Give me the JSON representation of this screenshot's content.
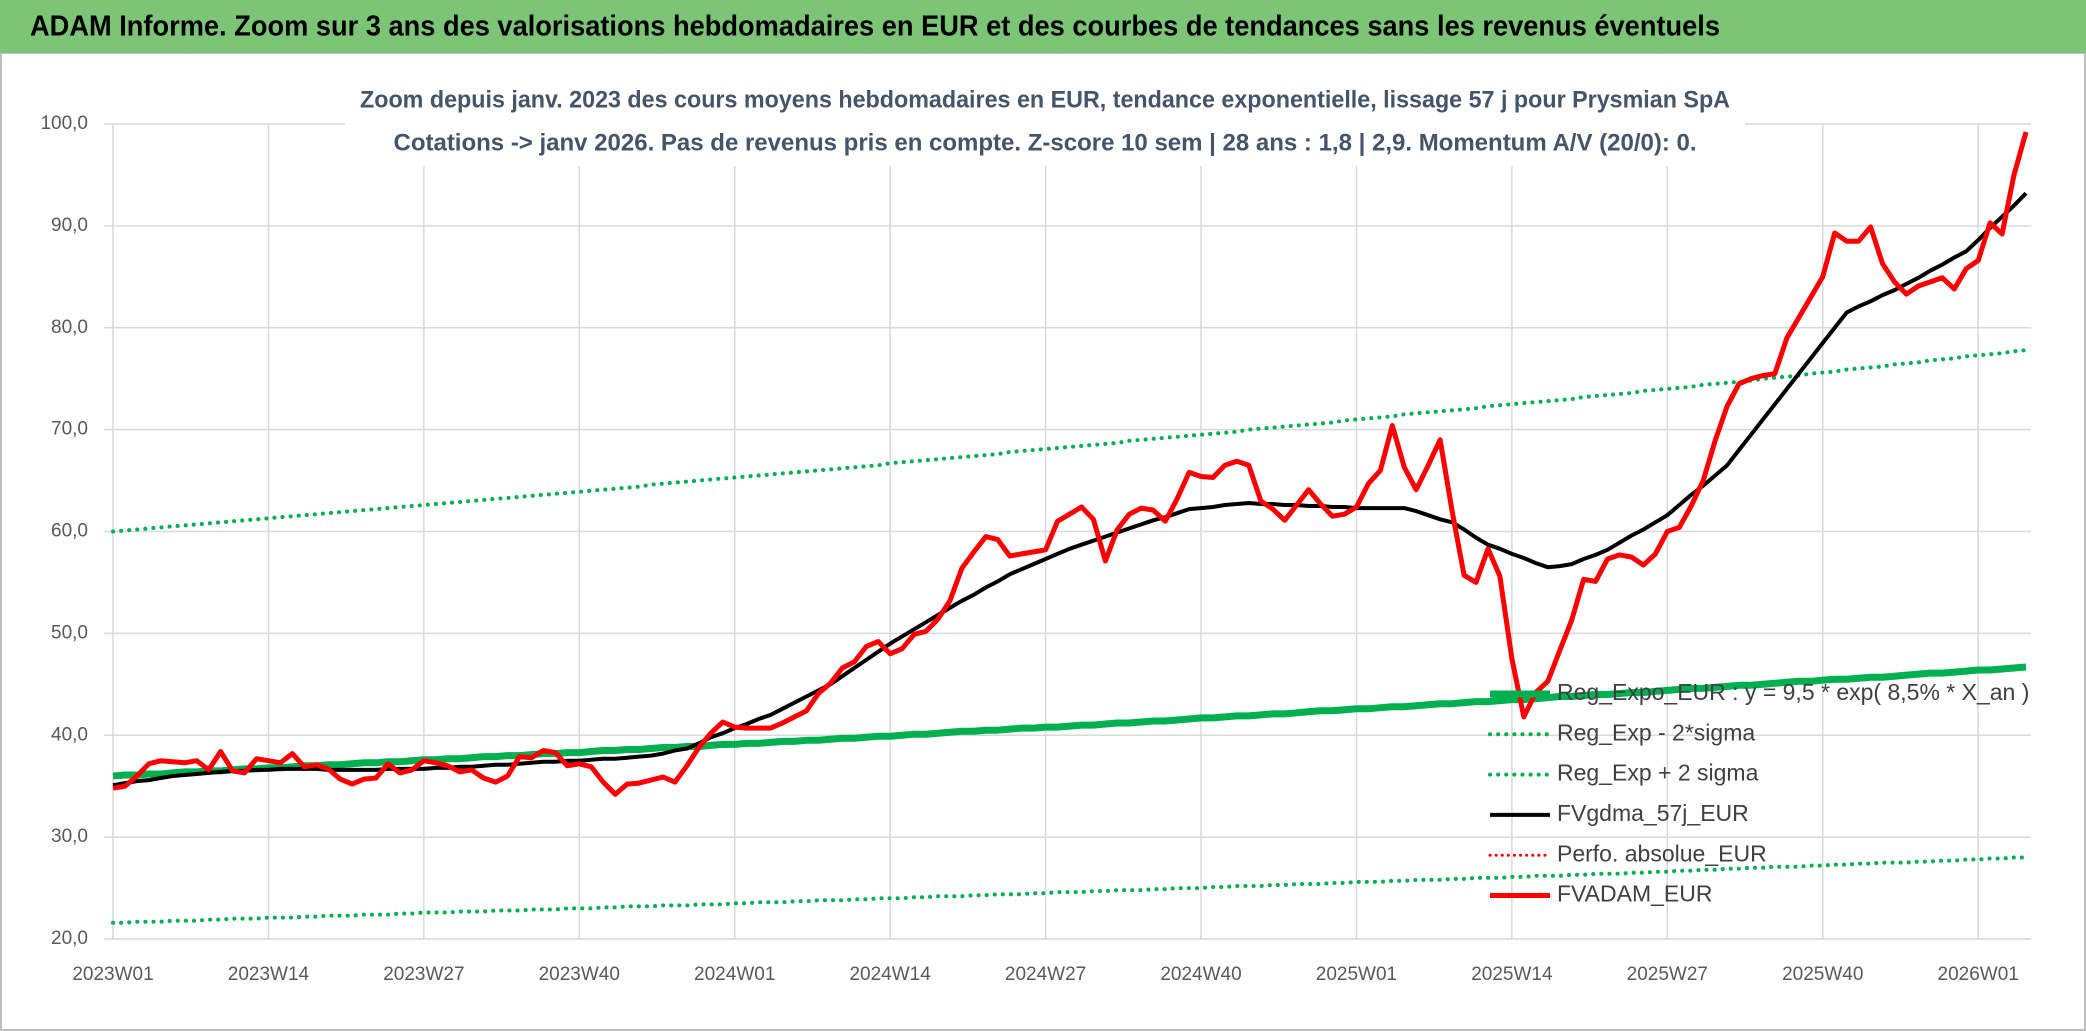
{
  "chart_data": {
    "type": "line",
    "title": "ADAM Informe. Zoom sur 3 ans des valorisations hebdomadaires en EUR et des courbes de tendances sans les revenus éventuels",
    "subtitle": [
      "Zoom depuis janv. 2023 des cours moyens hebdomadaires en EUR, tendance exponentielle, lissage 57 j pour Prysmian SpA",
      "Cotations -> janv 2026. Pas de revenus pris en compte. Z-score 10 sem | 28 ans : 1,8 | 2,9. Momentum A/V (20/0): 0."
    ],
    "categories": [
      "2023W01",
      null,
      null,
      null,
      null,
      null,
      null,
      null,
      null,
      null,
      null,
      null,
      null,
      "2023W14",
      null,
      null,
      null,
      null,
      null,
      null,
      null,
      null,
      null,
      null,
      null,
      null,
      "2023W27",
      null,
      null,
      null,
      null,
      null,
      null,
      null,
      null,
      null,
      null,
      null,
      null,
      "2023W40",
      null,
      null,
      null,
      null,
      null,
      null,
      null,
      null,
      null,
      null,
      null,
      null,
      "2024W01",
      null,
      null,
      null,
      null,
      null,
      null,
      null,
      null,
      null,
      null,
      null,
      null,
      "2024W14",
      null,
      null,
      null,
      null,
      null,
      null,
      null,
      null,
      null,
      null,
      null,
      null,
      "2024W27",
      null,
      null,
      null,
      null,
      null,
      null,
      null,
      null,
      null,
      null,
      null,
      null,
      "2024W40",
      null,
      null,
      null,
      null,
      null,
      null,
      null,
      null,
      null,
      null,
      null,
      null,
      "2025W01",
      null,
      null,
      null,
      null,
      null,
      null,
      null,
      null,
      null,
      null,
      null,
      null,
      "2025W14",
      null,
      null,
      null,
      null,
      null,
      null,
      null,
      null,
      null,
      null,
      null,
      null,
      "2025W27",
      null,
      null,
      null,
      null,
      null,
      null,
      null,
      null,
      null,
      null,
      null,
      null,
      "2025W40",
      null,
      null,
      null,
      null,
      null,
      null,
      null,
      null,
      null,
      null,
      null,
      null,
      "2026W01",
      null,
      null,
      null,
      null
    ],
    "ylim": [
      20,
      100
    ],
    "yticks": [
      {
        "value": 20,
        "label": "20,0"
      },
      {
        "value": 30,
        "label": "30,0"
      },
      {
        "value": 40,
        "label": "40,0"
      },
      {
        "value": 50,
        "label": "50,0"
      },
      {
        "value": 60,
        "label": "60,0"
      },
      {
        "value": 70,
        "label": "70,0"
      },
      {
        "value": 80,
        "label": "80,0"
      },
      {
        "value": 90,
        "label": "90,0"
      },
      {
        "value": 100,
        "label": "100,0"
      }
    ],
    "grid": true,
    "legend": "right",
    "series": [
      {
        "name": "Reg_Expo_EUR : y = 9,5 * exp( 8,5% *  X_an )",
        "color": "#00b050",
        "style": "solid",
        "width": 7,
        "values": [
          36.0,
          36.1,
          36.1,
          36.2,
          36.2,
          36.3,
          36.4,
          36.4,
          36.5,
          36.5,
          36.6,
          36.7,
          36.7,
          36.8,
          36.8,
          36.9,
          37.0,
          37.0,
          37.1,
          37.1,
          37.2,
          37.3,
          37.3,
          37.4,
          37.4,
          37.5,
          37.6,
          37.6,
          37.7,
          37.7,
          37.8,
          37.9,
          37.9,
          38.0,
          38.0,
          38.1,
          38.2,
          38.2,
          38.3,
          38.3,
          38.4,
          38.5,
          38.5,
          38.6,
          38.6,
          38.7,
          38.8,
          38.8,
          38.9,
          38.9,
          39.0,
          39.1,
          39.1,
          39.2,
          39.2,
          39.3,
          39.4,
          39.4,
          39.5,
          39.5,
          39.6,
          39.7,
          39.7,
          39.8,
          39.9,
          39.9,
          40.0,
          40.1,
          40.1,
          40.2,
          40.3,
          40.4,
          40.4,
          40.5,
          40.5,
          40.6,
          40.7,
          40.7,
          40.8,
          40.8,
          40.9,
          41.0,
          41.0,
          41.1,
          41.2,
          41.2,
          41.3,
          41.4,
          41.4,
          41.5,
          41.6,
          41.7,
          41.7,
          41.8,
          41.9,
          41.9,
          42.0,
          42.1,
          42.1,
          42.2,
          42.3,
          42.4,
          42.4,
          42.5,
          42.6,
          42.6,
          42.7,
          42.8,
          42.8,
          42.9,
          43.0,
          43.1,
          43.1,
          43.2,
          43.3,
          43.3,
          43.4,
          43.5,
          43.5,
          43.6,
          43.7,
          43.8,
          43.8,
          43.9,
          44.0,
          44.0,
          44.1,
          44.2,
          44.2,
          44.3,
          44.4,
          44.5,
          44.6,
          44.6,
          44.7,
          44.8,
          44.9,
          44.9,
          45.0,
          45.1,
          45.2,
          45.3,
          45.3,
          45.4,
          45.5,
          45.5,
          45.6,
          45.7,
          45.7,
          45.8,
          45.9,
          46.0,
          46.1,
          46.1,
          46.2,
          46.3,
          46.4,
          46.4,
          46.5,
          46.6,
          46.7
        ]
      },
      {
        "name": "Reg_Exp - 2*sigma",
        "color": "#00b050",
        "style": "dotted",
        "width": 4,
        "values": [
          21.6,
          21.6,
          21.7,
          21.7,
          21.7,
          21.8,
          21.8,
          21.8,
          21.9,
          21.9,
          22.0,
          22.0,
          22.0,
          22.1,
          22.1,
          22.1,
          22.2,
          22.2,
          22.3,
          22.3,
          22.3,
          22.4,
          22.4,
          22.4,
          22.5,
          22.5,
          22.6,
          22.6,
          22.6,
          22.7,
          22.7,
          22.7,
          22.8,
          22.8,
          22.8,
          22.9,
          22.9,
          22.9,
          23.0,
          23.0,
          23.0,
          23.1,
          23.1,
          23.2,
          23.2,
          23.2,
          23.3,
          23.3,
          23.3,
          23.4,
          23.4,
          23.4,
          23.5,
          23.5,
          23.6,
          23.6,
          23.6,
          23.7,
          23.7,
          23.8,
          23.8,
          23.8,
          23.9,
          23.9,
          24.0,
          24.0,
          24.0,
          24.1,
          24.1,
          24.2,
          24.2,
          24.2,
          24.3,
          24.3,
          24.4,
          24.4,
          24.4,
          24.5,
          24.5,
          24.6,
          24.6,
          24.6,
          24.7,
          24.7,
          24.8,
          24.8,
          24.8,
          24.9,
          24.9,
          25.0,
          25.0,
          25.0,
          25.1,
          25.1,
          25.2,
          25.2,
          25.2,
          25.3,
          25.3,
          25.4,
          25.4,
          25.4,
          25.5,
          25.5,
          25.6,
          25.6,
          25.6,
          25.7,
          25.7,
          25.8,
          25.8,
          25.8,
          25.9,
          25.9,
          26.0,
          26.0,
          26.0,
          26.1,
          26.1,
          26.2,
          26.2,
          26.2,
          26.3,
          26.3,
          26.4,
          26.4,
          26.4,
          26.5,
          26.5,
          26.6,
          26.6,
          26.7,
          26.7,
          26.8,
          26.8,
          26.9,
          26.9,
          27.0,
          27.0,
          27.1,
          27.1,
          27.1,
          27.2,
          27.2,
          27.3,
          27.3,
          27.4,
          27.4,
          27.5,
          27.5,
          27.5,
          27.6,
          27.6,
          27.7,
          27.7,
          27.8,
          27.8,
          27.9,
          27.9,
          28.0,
          28.0
        ]
      },
      {
        "name": "Reg_Exp + 2 sigma",
        "color": "#00b050",
        "style": "dotted",
        "width": 4,
        "values": [
          60.0,
          60.1,
          60.2,
          60.3,
          60.4,
          60.5,
          60.6,
          60.7,
          60.8,
          60.9,
          61.0,
          61.1,
          61.2,
          61.3,
          61.4,
          61.5,
          61.6,
          61.7,
          61.8,
          61.9,
          62.0,
          62.1,
          62.2,
          62.3,
          62.4,
          62.5,
          62.6,
          62.7,
          62.8,
          62.9,
          63.0,
          63.1,
          63.2,
          63.3,
          63.4,
          63.5,
          63.6,
          63.7,
          63.8,
          63.9,
          64.0,
          64.1,
          64.2,
          64.3,
          64.4,
          64.6,
          64.7,
          64.8,
          64.9,
          65.0,
          65.1,
          65.2,
          65.3,
          65.4,
          65.5,
          65.6,
          65.7,
          65.8,
          65.9,
          66.0,
          66.1,
          66.2,
          66.3,
          66.4,
          66.5,
          66.7,
          66.8,
          66.9,
          67.0,
          67.1,
          67.2,
          67.3,
          67.4,
          67.5,
          67.6,
          67.8,
          67.9,
          68.0,
          68.1,
          68.2,
          68.3,
          68.4,
          68.5,
          68.6,
          68.7,
          68.9,
          69.0,
          69.1,
          69.2,
          69.3,
          69.4,
          69.5,
          69.6,
          69.7,
          69.8,
          70.0,
          70.1,
          70.2,
          70.3,
          70.4,
          70.5,
          70.6,
          70.7,
          70.9,
          71.0,
          71.1,
          71.2,
          71.3,
          71.5,
          71.6,
          71.7,
          71.8,
          71.9,
          72.0,
          72.1,
          72.3,
          72.4,
          72.5,
          72.6,
          72.7,
          72.8,
          72.9,
          73.0,
          73.2,
          73.3,
          73.4,
          73.5,
          73.6,
          73.8,
          73.9,
          74.0,
          74.1,
          74.2,
          74.4,
          74.5,
          74.6,
          74.7,
          74.8,
          75.0,
          75.1,
          75.2,
          75.3,
          75.5,
          75.6,
          75.7,
          75.9,
          76.0,
          76.1,
          76.2,
          76.4,
          76.5,
          76.6,
          76.8,
          76.9,
          77.0,
          77.2,
          77.3,
          77.4,
          77.5,
          77.7,
          77.8
        ]
      },
      {
        "name": "FVgdma_57j_EUR",
        "color": "#000000",
        "style": "solid",
        "width": 4,
        "values": [
          35.1,
          35.3,
          35.5,
          35.6,
          35.8,
          36.0,
          36.1,
          36.2,
          36.3,
          36.4,
          36.5,
          36.5,
          36.6,
          36.6,
          36.7,
          36.7,
          36.7,
          36.7,
          36.6,
          36.6,
          36.6,
          36.6,
          36.6,
          36.7,
          36.7,
          36.7,
          36.7,
          36.8,
          36.8,
          36.9,
          36.9,
          37.0,
          37.1,
          37.1,
          37.2,
          37.3,
          37.4,
          37.4,
          37.5,
          37.5,
          37.6,
          37.7,
          37.7,
          37.8,
          37.9,
          38.0,
          38.2,
          38.5,
          38.7,
          39.2,
          39.8,
          40.2,
          40.7,
          41.1,
          41.6,
          42.0,
          42.6,
          43.2,
          43.8,
          44.4,
          45.0,
          45.8,
          46.6,
          47.4,
          48.2,
          49.0,
          49.7,
          50.4,
          51.1,
          51.8,
          52.5,
          53.2,
          53.8,
          54.5,
          55.1,
          55.8,
          56.3,
          56.8,
          57.3,
          57.8,
          58.3,
          58.7,
          59.1,
          59.5,
          59.9,
          60.3,
          60.7,
          61.1,
          61.4,
          61.8,
          62.2,
          62.3,
          62.4,
          62.6,
          62.7,
          62.8,
          62.7,
          62.7,
          62.6,
          62.6,
          62.5,
          62.5,
          62.4,
          62.4,
          62.3,
          62.3,
          62.3,
          62.3,
          62.3,
          62.0,
          61.6,
          61.2,
          60.9,
          60.2,
          59.4,
          58.7,
          58.3,
          57.8,
          57.4,
          56.9,
          56.5,
          56.6,
          56.8,
          57.3,
          57.7,
          58.2,
          58.9,
          59.6,
          60.2,
          60.9,
          61.6,
          62.6,
          63.6,
          64.5,
          65.5,
          66.5,
          68.0,
          69.5,
          71.0,
          72.5,
          74.0,
          75.5,
          77.0,
          78.5,
          80.0,
          81.5,
          82.1,
          82.6,
          83.2,
          83.7,
          84.3,
          84.9,
          85.6,
          86.2,
          86.9,
          87.5,
          88.6,
          89.8,
          90.9,
          92.0,
          93.2
        ]
      },
      {
        "name": "Perfo. absolue_EUR",
        "color": "#ff0000",
        "style": "dotted",
        "width": 3,
        "values": [
          null,
          null,
          null,
          null,
          null,
          null,
          null,
          null,
          null,
          null,
          null,
          null,
          null,
          null,
          null,
          null,
          null,
          null,
          null,
          null,
          null,
          null,
          null,
          null,
          null,
          null,
          null,
          null,
          null,
          null,
          null,
          null,
          null,
          null,
          null,
          null,
          null,
          null,
          null,
          null,
          null,
          null,
          null,
          null,
          null,
          null,
          null,
          null,
          null,
          null,
          null,
          null,
          null,
          null,
          null,
          null,
          null,
          null,
          null,
          null,
          null,
          null,
          null,
          null,
          null,
          null,
          null,
          null,
          null,
          null,
          null,
          null,
          null,
          null,
          null,
          null,
          null,
          null,
          null,
          null,
          null,
          null,
          null,
          null,
          null,
          null,
          null,
          null,
          null,
          null,
          null,
          null,
          null,
          null,
          null,
          null,
          null,
          null,
          null,
          null,
          null,
          null,
          null,
          null,
          null,
          null,
          null,
          null,
          null,
          null,
          null,
          null,
          null,
          null,
          null,
          null,
          null,
          null,
          null,
          null,
          null,
          null,
          null,
          null,
          null,
          null,
          null,
          null,
          null,
          null,
          null,
          null,
          null,
          null,
          null,
          null,
          null,
          null,
          null,
          null,
          null,
          null,
          null,
          null,
          null,
          null,
          null,
          null,
          null,
          null,
          null,
          null,
          null,
          null,
          null,
          null,
          null,
          null,
          null,
          null,
          null
        ]
      },
      {
        "name": "FVADAM_EUR",
        "color": "#ff0000",
        "style": "solid",
        "width": 5,
        "values": [
          34.8,
          35.0,
          36.0,
          37.2,
          37.5,
          37.4,
          37.3,
          37.5,
          36.6,
          38.4,
          36.5,
          36.3,
          37.7,
          37.5,
          37.3,
          38.2,
          36.9,
          37.1,
          36.7,
          35.7,
          35.2,
          35.7,
          35.8,
          37.2,
          36.3,
          36.6,
          37.5,
          37.3,
          37.0,
          36.4,
          36.6,
          35.8,
          35.4,
          36.0,
          37.9,
          37.8,
          38.5,
          38.3,
          37.0,
          37.2,
          36.9,
          35.4,
          34.2,
          35.2,
          35.3,
          35.6,
          35.9,
          35.4,
          37.0,
          38.8,
          40.2,
          41.3,
          40.8,
          40.7,
          40.7,
          40.7,
          41.2,
          41.8,
          42.4,
          44.1,
          45.1,
          46.6,
          47.2,
          48.7,
          49.2,
          48.0,
          48.5,
          49.9,
          50.2,
          51.4,
          53.2,
          56.4,
          58.0,
          59.5,
          59.2,
          57.6,
          57.8,
          58.0,
          58.2,
          61.0,
          61.7,
          62.4,
          61.2,
          57.1,
          60.2,
          61.7,
          62.3,
          62.1,
          61.0,
          63.2,
          65.8,
          65.4,
          65.3,
          66.5,
          66.9,
          66.5,
          63.0,
          62.2,
          61.1,
          62.6,
          64.1,
          62.7,
          61.5,
          61.7,
          62.4,
          64.7,
          66.0,
          70.4,
          66.3,
          64.1,
          66.5,
          69.0,
          62.0,
          55.7,
          55.0,
          58.3,
          55.6,
          47.5,
          41.8,
          44.2,
          45.3,
          48.3,
          51.3,
          55.3,
          55.1,
          57.3,
          57.7,
          57.5,
          56.7,
          57.8,
          60.0,
          60.4,
          62.5,
          65.0,
          68.9,
          72.3,
          74.5,
          75.0,
          75.3,
          75.5,
          79.0,
          81.0,
          83.0,
          85.0,
          89.3,
          88.5,
          88.5,
          89.9,
          86.3,
          84.5,
          83.3,
          84.1,
          84.5,
          84.9,
          83.8,
          85.8,
          86.6,
          90.3,
          89.2,
          95.0,
          99.2
        ]
      }
    ]
  }
}
